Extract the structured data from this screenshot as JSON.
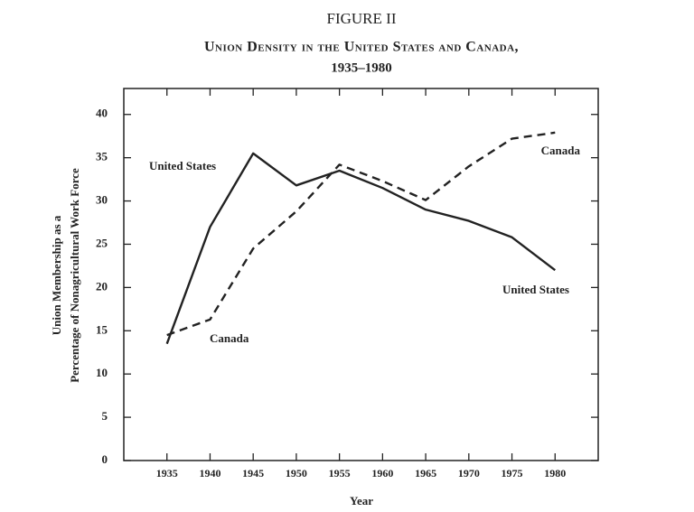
{
  "chart_data": {
    "type": "line",
    "title": "FIGURE II",
    "subtitle": [
      "Union Density in the United States and Canada,",
      "1935–1980"
    ],
    "xlabel": "Year",
    "ylabel": [
      "Union Membership as a",
      "Percentage of Nonagricultural Work Force"
    ],
    "x": [
      1935,
      1940,
      1945,
      1950,
      1955,
      1960,
      1965,
      1970,
      1975,
      1980
    ],
    "series": [
      {
        "name": "United States",
        "color": "#222222",
        "dash": false,
        "values": [
          13.5,
          27,
          35.5,
          31.8,
          33.5,
          31.5,
          29,
          27.7,
          25.8,
          22
        ]
      },
      {
        "name": "Canada",
        "color": "#222222",
        "dash": true,
        "values": [
          14.5,
          16.3,
          24.5,
          28.8,
          34.2,
          32.3,
          30.1,
          34,
          37.2,
          37.9
        ]
      }
    ],
    "xlim": [
      1930,
      1985
    ],
    "xticks": [
      1935,
      1940,
      1945,
      1950,
      1955,
      1960,
      1965,
      1970,
      1975,
      1980
    ],
    "ylim": [
      0,
      43
    ],
    "yticks": [
      0,
      5,
      10,
      15,
      20,
      25,
      30,
      35,
      40
    ]
  }
}
